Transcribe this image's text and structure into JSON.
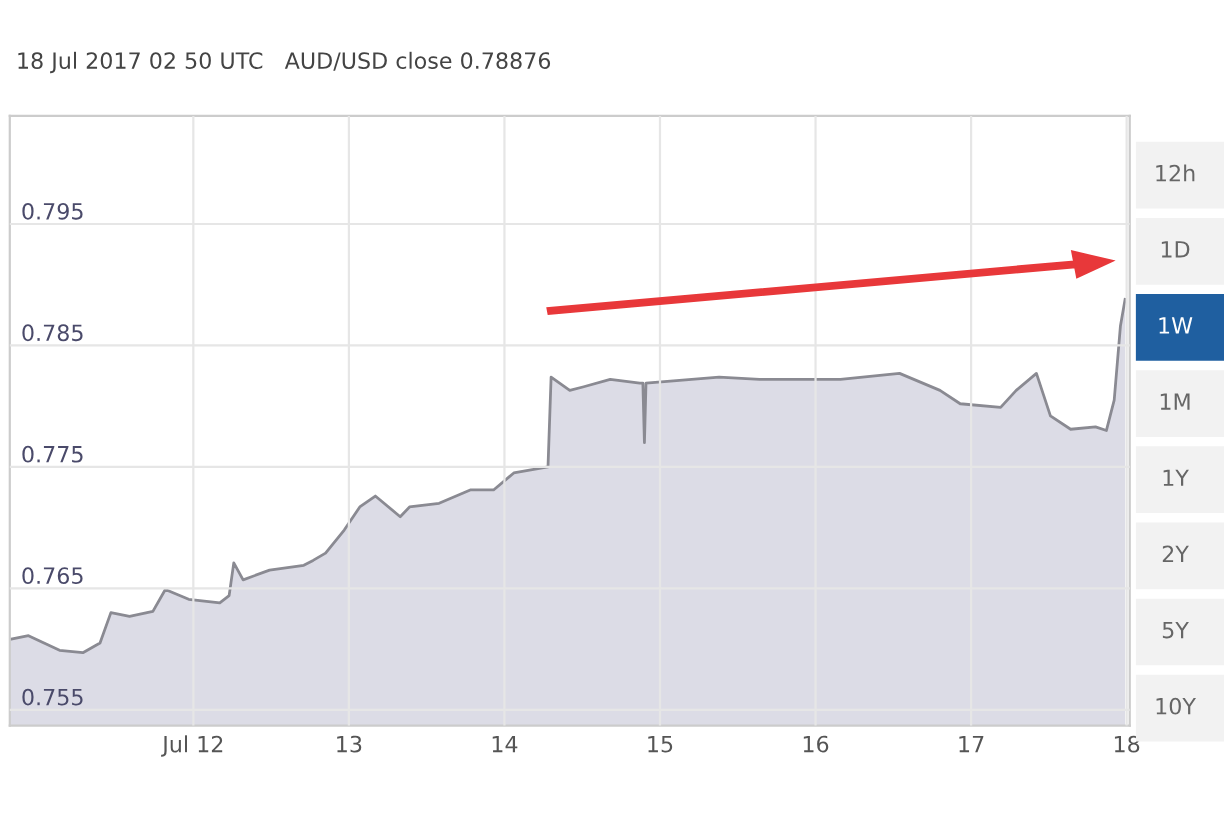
{
  "chart_data": {
    "type": "area",
    "title": "18 Jul 2017 02 50 UTC   AUD/USD close 0.78876",
    "x": [
      10.82,
      10.94,
      11.14,
      11.29,
      11.4,
      11.47,
      11.59,
      11.74,
      11.82,
      11.97,
      12.17,
      12.23,
      12.26,
      12.32,
      12.49,
      12.71,
      12.77,
      12.85,
      12.97,
      13.07,
      13.17,
      13.33,
      13.39,
      13.58,
      13.78,
      13.93,
      14.06,
      14.28,
      14.3,
      14.42,
      14.51,
      14.68,
      14.87,
      14.89,
      14.9,
      14.91,
      15.38,
      15.64,
      16.16,
      16.54,
      16.8,
      16.93,
      17.19,
      17.29,
      17.42,
      17.51,
      17.64,
      17.8,
      17.87,
      17.92,
      17.96,
      17.99
    ],
    "series": [
      {
        "color": "#8a8a92",
        "values": [
          0.7608,
          0.7611,
          0.7599,
          0.7597,
          0.7605,
          0.763,
          0.7627,
          0.7631,
          0.7649,
          0.7641,
          0.7638,
          0.7644,
          0.7671,
          0.7657,
          0.7665,
          0.7669,
          0.7673,
          0.7679,
          0.7698,
          0.7717,
          0.7726,
          0.7709,
          0.7717,
          0.772,
          0.7731,
          0.7731,
          0.7745,
          0.775,
          0.7824,
          0.7813,
          0.7816,
          0.7822,
          0.7819,
          0.7819,
          0.777,
          0.7819,
          0.7824,
          0.7822,
          0.7822,
          0.7827,
          0.7813,
          0.7802,
          0.7799,
          0.7813,
          0.7827,
          0.7792,
          0.7781,
          0.7783,
          0.778,
          0.7805,
          0.7866,
          0.7888
        ]
      }
    ],
    "xlim": [
      10.82,
      18.02
    ],
    "xticks": [
      {
        "value": 12,
        "label": "Jul 12"
      },
      13,
      14,
      15,
      16,
      17,
      18
    ],
    "ylim": [
      0.7537,
      0.8039
    ],
    "yticks": [
      0.755,
      0.765,
      0.775,
      0.785,
      0.795
    ],
    "grid": true,
    "annotations": [
      "12h",
      "1D",
      "1W",
      "1M",
      "1Y",
      "2Y",
      "5Y",
      "10Y"
    ]
  }
}
